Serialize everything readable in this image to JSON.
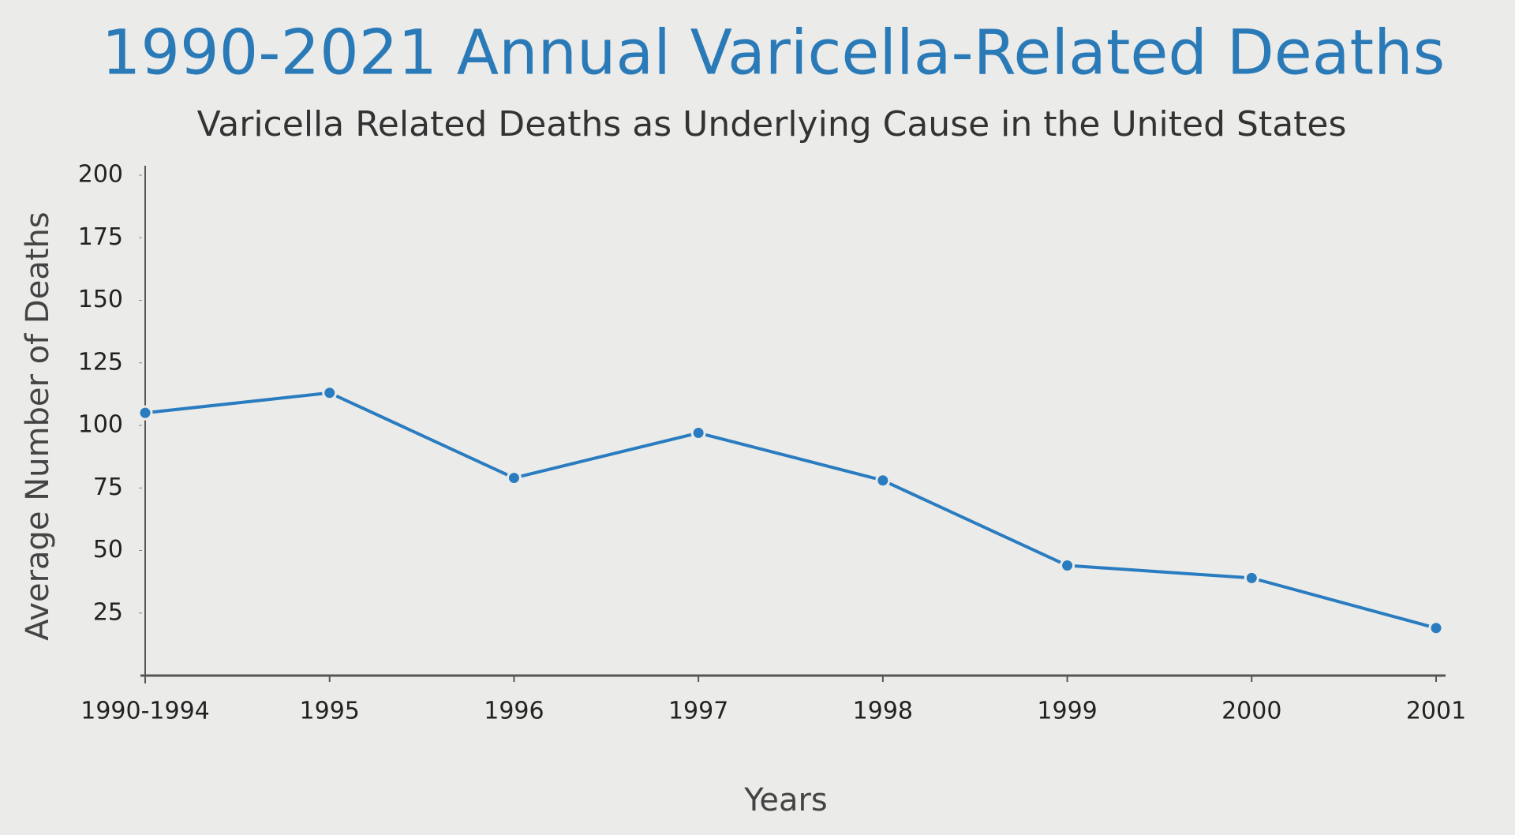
{
  "chart_data": {
    "type": "line",
    "title": "1990-2021 Annual Varicella-Related Deaths",
    "subtitle": "Varicella Related Deaths as Underlying Cause in the United States",
    "x_label": "Years",
    "y_label": "Average Number of Deaths",
    "categories": [
      "1990-1994",
      "1995",
      "1996",
      "1997",
      "1998",
      "1999",
      "2000",
      "2001"
    ],
    "series": [
      {
        "name": "Average Number of Deaths",
        "color": "#2a7cc0",
        "values": [
          105,
          113,
          79,
          97,
          78,
          44,
          39,
          19
        ]
      }
    ],
    "ylim": [
      0,
      200
    ],
    "yticks": [
      25,
      50,
      75,
      100,
      125,
      150,
      175,
      200
    ],
    "grid": false
  }
}
